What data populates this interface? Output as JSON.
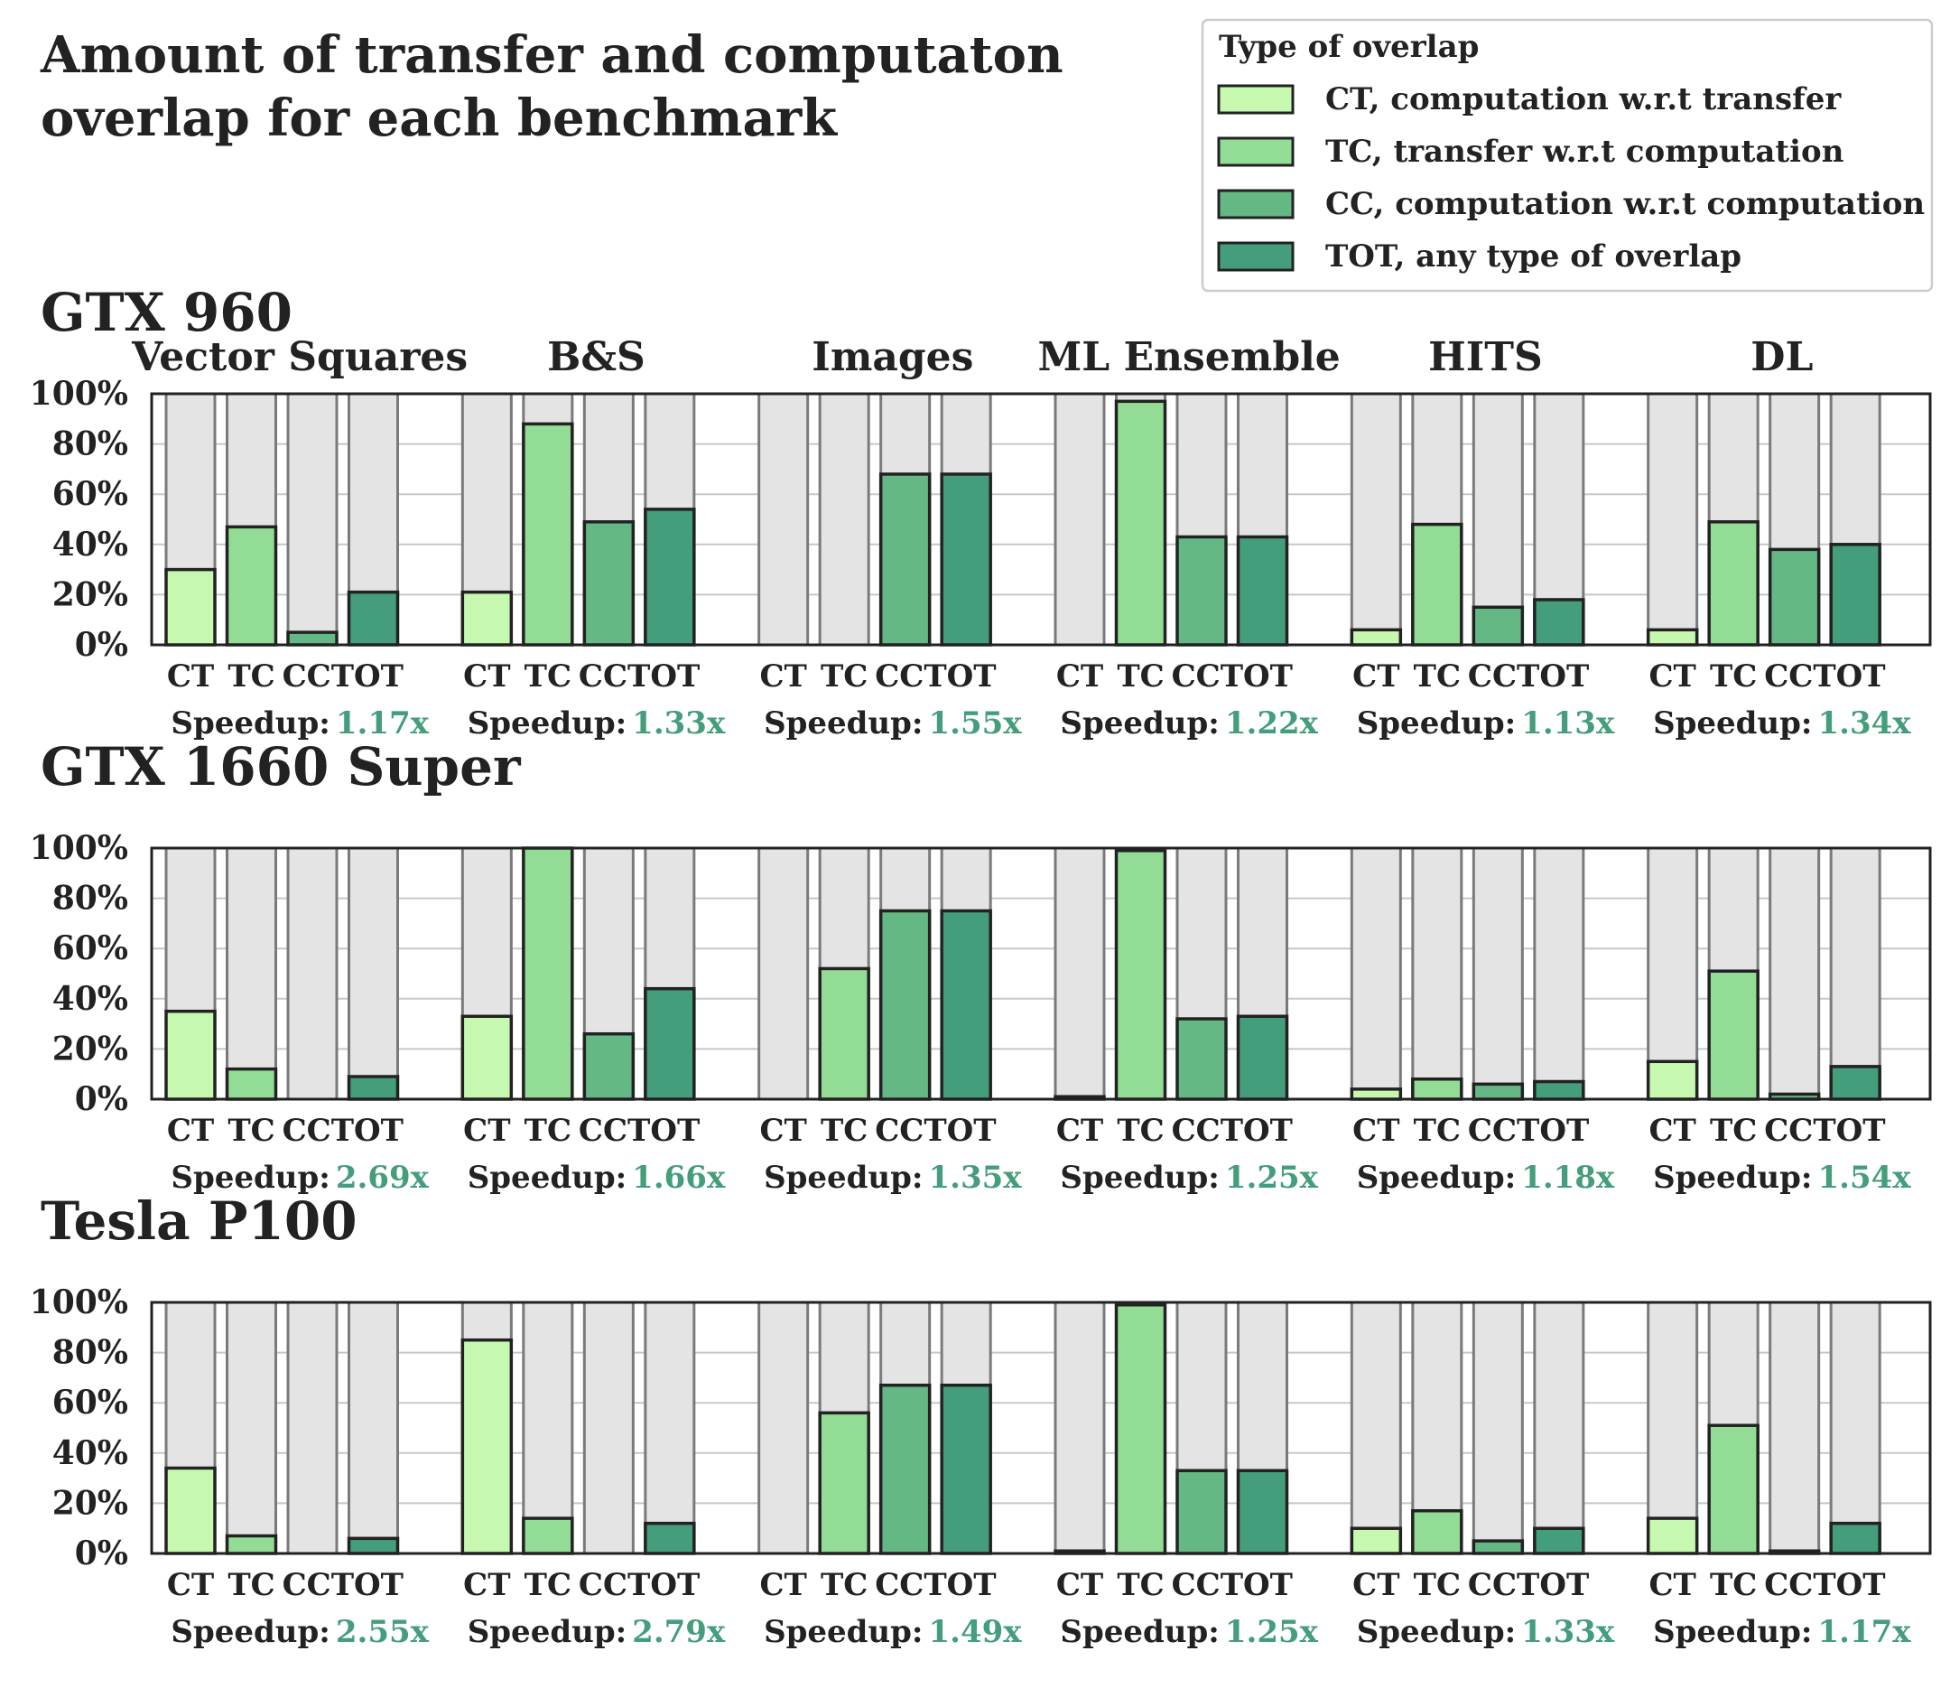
{
  "chart_data": {
    "type": "bar",
    "title": "Amount of transfer and computaton overlap for each benchmark",
    "title_lines": [
      "Amount of transfer and computaton",
      "overlap for each benchmark"
    ],
    "categories": [
      "CT",
      "TC",
      "CC",
      "TOT"
    ],
    "tick_labels": [
      "CT",
      "TC",
      "CCTOT"
    ],
    "benchmarks": [
      "Vector Squares",
      "B&S",
      "Images",
      "ML Ensemble",
      "HITS",
      "DL"
    ],
    "y_ticks": [
      "0%",
      "20%",
      "40%",
      "60%",
      "80%",
      "100%"
    ],
    "ylim": [
      0,
      100
    ],
    "grid": true,
    "speedup_label": "Speedup:",
    "legend": {
      "title": "Type of overlap",
      "placement": "top-right",
      "entries": [
        "CT, computation w.r.t transfer",
        "TC, transfer w.r.t computation",
        "CC, computation w.r.t computation",
        "TOT, any type of overlap"
      ]
    },
    "colors": {
      "CT": "#c7f8b0",
      "TC": "#93dc95",
      "CC": "#64b883",
      "TOT": "#449d7b",
      "background_bar": "#e4e4e4",
      "background_bar_edge": "#7a7a7a",
      "speedup_value": "#449d7b",
      "gridline": "#c8c8c8"
    },
    "panels": [
      {
        "gpu": "GTX 960",
        "values": [
          [
            30,
            47,
            5,
            21
          ],
          [
            21,
            88,
            49,
            54
          ],
          [
            0,
            0,
            68,
            68
          ],
          [
            0,
            97,
            43,
            43
          ],
          [
            6,
            48,
            15,
            18
          ],
          [
            6,
            49,
            38,
            40
          ]
        ],
        "speedups": [
          "1.17x",
          "1.33x",
          "1.55x",
          "1.22x",
          "1.13x",
          "1.34x"
        ]
      },
      {
        "gpu": "GTX 1660 Super",
        "values": [
          [
            35,
            12,
            0,
            9
          ],
          [
            33,
            100,
            26,
            44
          ],
          [
            0,
            52,
            75,
            75
          ],
          [
            1,
            99,
            32,
            33
          ],
          [
            4,
            8,
            6,
            7
          ],
          [
            15,
            51,
            2,
            13
          ]
        ],
        "speedups": [
          "2.69x",
          "1.66x",
          "1.35x",
          "1.25x",
          "1.18x",
          "1.54x"
        ]
      },
      {
        "gpu": "Tesla P100",
        "values": [
          [
            34,
            7,
            0,
            6
          ],
          [
            85,
            14,
            0,
            12
          ],
          [
            0,
            56,
            67,
            67
          ],
          [
            1,
            99,
            33,
            33
          ],
          [
            10,
            17,
            5,
            10
          ],
          [
            14,
            51,
            1,
            12
          ]
        ],
        "speedups": [
          "2.55x",
          "2.79x",
          "1.49x",
          "1.25x",
          "1.33x",
          "1.17x"
        ]
      }
    ]
  }
}
